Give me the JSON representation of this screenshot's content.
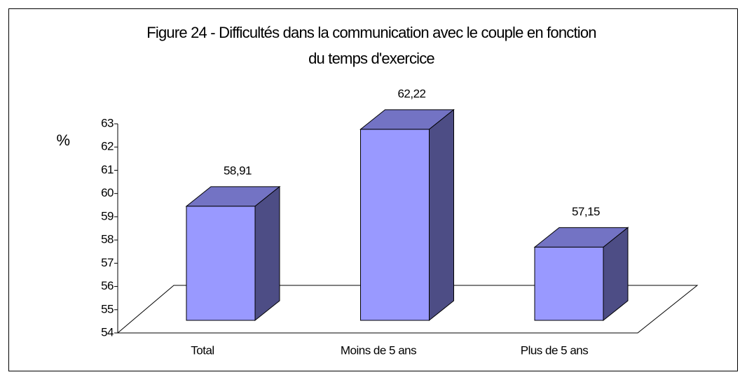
{
  "chart_data": {
    "type": "bar3d",
    "title": "Figure 24 - Difficultés dans la communication avec le couple en fonction du temps d'exercice",
    "y_label": "%",
    "categories": [
      "Total",
      "Moins de 5 ans",
      "Plus de 5 ans"
    ],
    "values": [
      58.91,
      62.22,
      57.15
    ],
    "value_labels": [
      "58,91",
      "62,22",
      "57,15"
    ],
    "color": "#9999ff",
    "ylim": [
      54,
      63
    ],
    "yticks": [
      54,
      55,
      56,
      57,
      58,
      59,
      60,
      61,
      62,
      63
    ]
  }
}
